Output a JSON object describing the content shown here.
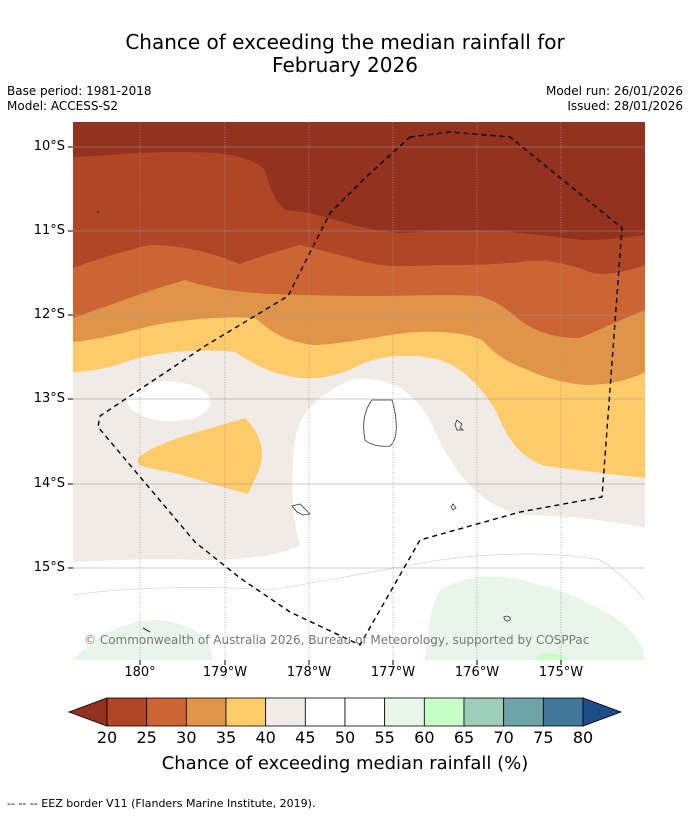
{
  "header": {
    "title_line1": "Chance of exceeding the median rainfall for",
    "title_line2": "February 2026",
    "base_period": "Base period: 1981-2018",
    "model": "Model: ACCESS-S2",
    "model_run": "Model run: 26/01/2026",
    "issued": "Issued: 28/01/2026"
  },
  "map": {
    "lat_labels": [
      "10°S",
      "11°S",
      "12°S",
      "13°S",
      "14°S",
      "15°S"
    ],
    "lon_labels": [
      "180°",
      "179°W",
      "178°W",
      "177°W",
      "176°W",
      "175°W"
    ],
    "copyright": "© Commonwealth of Australia 2026, Bureau of Meteorology, supported by COSPPac",
    "colors": {
      "p20": "#93321e",
      "p25": "#b04626",
      "p30": "#cc6434",
      "p35": "#e09448",
      "p40": "#fecb6a",
      "p45": "#f0ebe6",
      "p50": "#ffffff",
      "p55": "#ffffff",
      "p60": "#eaf5ea",
      "p65": "#c6ffc8",
      "p70": "#9ecdb9",
      "p75": "#6da3a6",
      "p80": "#417798",
      "p85": "#1d4d86"
    }
  },
  "colorbar": {
    "ticks": [
      "20",
      "25",
      "30",
      "35",
      "40",
      "45",
      "50",
      "55",
      "60",
      "65",
      "70",
      "75",
      "80"
    ],
    "segment_colors": [
      "#b04626",
      "#cc6434",
      "#e09448",
      "#fecb6a",
      "#f0ebe6",
      "#ffffff",
      "#ffffff",
      "#eaf5ea",
      "#c6ffc8",
      "#9ecdb9",
      "#6da3a6",
      "#417798"
    ],
    "low_color": "#93321e",
    "high_color": "#1d4d86",
    "label": "Chance of exceeding median rainfall (%)"
  },
  "footer": {
    "legend_text": "--  --  -- EEZ border V11 (Flanders Marine Institute, 2019)."
  }
}
